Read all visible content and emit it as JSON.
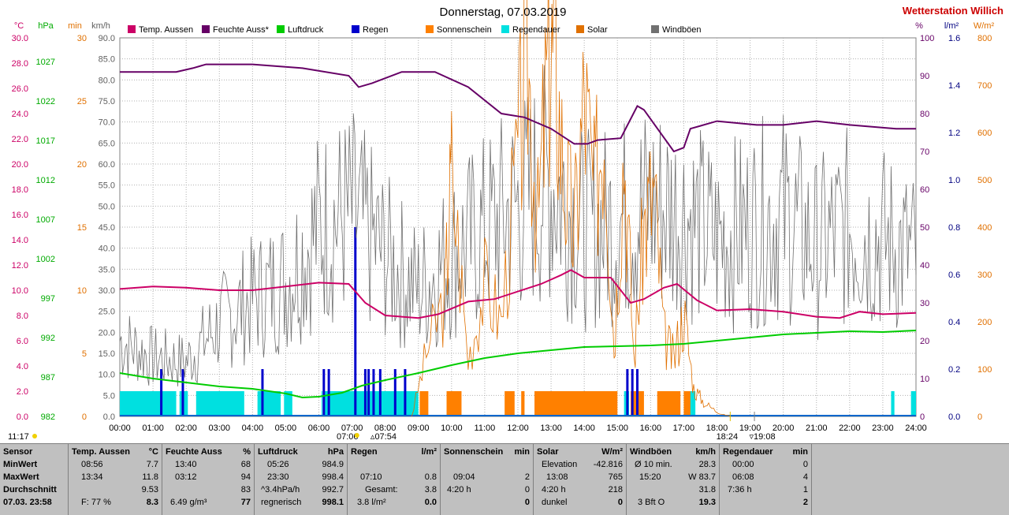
{
  "header": {
    "title": "Donnerstag, 07.03.2019",
    "brand": "Wetterstation Willich",
    "brand_color": "#cc0000"
  },
  "axes": {
    "temp": {
      "unit": "°C",
      "color": "#cc0066",
      "ticks": [
        "0.0",
        "2.0",
        "4.0",
        "6.0",
        "8.0",
        "10.0",
        "12.0",
        "14.0",
        "16.0",
        "18.0",
        "20.0",
        "22.0",
        "24.0",
        "26.0",
        "28.0",
        "30.0"
      ]
    },
    "hpa": {
      "unit": "hPa",
      "color": "#00aa00",
      "ticks": [
        "982",
        "987",
        "992",
        "997",
        "1002",
        "1007",
        "1012",
        "1017",
        "1022",
        "1027"
      ]
    },
    "min": {
      "unit": "min",
      "color": "#e07000",
      "ticks": [
        "0",
        "5",
        "10",
        "15",
        "20",
        "25",
        "30"
      ]
    },
    "kmh": {
      "unit": "km/h",
      "color": "#606060",
      "ticks": [
        "0.0",
        "5.0",
        "10.0",
        "15.0",
        "20.0",
        "25.0",
        "30.0",
        "35.0",
        "40.0",
        "45.0",
        "50.0",
        "55.0",
        "60.0",
        "65.0",
        "70.0",
        "75.0",
        "80.0",
        "85.0",
        "90.0"
      ]
    },
    "pct": {
      "unit": "%",
      "color": "#660066",
      "ticks": [
        "0",
        "10",
        "20",
        "30",
        "40",
        "50",
        "60",
        "70",
        "80",
        "90",
        "100"
      ]
    },
    "lm2": {
      "unit": "l/m²",
      "color": "#000080",
      "ticks": [
        "0.0",
        "0.2",
        "0.4",
        "0.6",
        "0.8",
        "1.0",
        "1.2",
        "1.4",
        "1.6"
      ]
    },
    "wm2": {
      "unit": "W/m²",
      "color": "#e07000",
      "ticks": [
        "0",
        "100",
        "200",
        "300",
        "400",
        "500",
        "600",
        "700",
        "800"
      ]
    }
  },
  "time_labels": [
    "00:00",
    "01:00",
    "02:00",
    "03:00",
    "04:00",
    "05:00",
    "06:00",
    "07:00",
    "08:00",
    "09:00",
    "10:00",
    "11:00",
    "12:00",
    "13:00",
    "14:00",
    "15:00",
    "16:00",
    "17:00",
    "18:00",
    "19:00",
    "20:00",
    "21:00",
    "22:00",
    "23:00",
    "24:00"
  ],
  "sun_marks": {
    "left": "11:17",
    "sunrise": "07:06",
    "civil_dawn": "07:54",
    "sunset": "18:24",
    "civil_dusk": "19:08"
  },
  "chart_data": {
    "type": "line",
    "title": "Donnerstag, 07.03.2019",
    "x_range": [
      "00:00",
      "24:00"
    ],
    "grid": true,
    "legend_position": "top",
    "series": [
      {
        "name": "Temp. Aussen",
        "unit": "°C",
        "color": "#cc0066",
        "points": [
          [
            0,
            10.1
          ],
          [
            1,
            10.3
          ],
          [
            2,
            10.2
          ],
          [
            3,
            10.0
          ],
          [
            4,
            10.0
          ],
          [
            5,
            10.3
          ],
          [
            6,
            10.6
          ],
          [
            6.9,
            10.5
          ],
          [
            7.4,
            9.0
          ],
          [
            8,
            8.0
          ],
          [
            9,
            7.8
          ],
          [
            9.6,
            8.1
          ],
          [
            10.5,
            9.1
          ],
          [
            11.3,
            9.3
          ],
          [
            12,
            9.9
          ],
          [
            12.7,
            10.5
          ],
          [
            13.3,
            11.2
          ],
          [
            13.6,
            11.6
          ],
          [
            14,
            11.0
          ],
          [
            14.8,
            11.0
          ],
          [
            15.4,
            9.0
          ],
          [
            15.8,
            9.3
          ],
          [
            16.4,
            10.2
          ],
          [
            16.8,
            10.5
          ],
          [
            17.4,
            9.2
          ],
          [
            18,
            8.4
          ],
          [
            19,
            8.5
          ],
          [
            20,
            8.3
          ],
          [
            21,
            7.9
          ],
          [
            21.7,
            7.8
          ],
          [
            22.3,
            8.3
          ],
          [
            23,
            8.1
          ],
          [
            24,
            8.2
          ]
        ]
      },
      {
        "name": "Feuchte Aussen",
        "unit": "%",
        "color": "#660066",
        "points": [
          [
            0,
            91
          ],
          [
            1.7,
            91
          ],
          [
            2.2,
            92
          ],
          [
            2.6,
            93
          ],
          [
            4,
            93
          ],
          [
            5.5,
            92
          ],
          [
            6.9,
            90
          ],
          [
            7.2,
            87
          ],
          [
            7.6,
            88
          ],
          [
            8.5,
            91
          ],
          [
            9.5,
            91
          ],
          [
            10.5,
            87
          ],
          [
            11.5,
            80
          ],
          [
            12.2,
            79
          ],
          [
            13,
            76
          ],
          [
            13.7,
            72
          ],
          [
            14.1,
            72
          ],
          [
            14.4,
            73
          ],
          [
            15.1,
            73.5
          ],
          [
            15.6,
            82
          ],
          [
            15.8,
            81
          ],
          [
            16.7,
            70
          ],
          [
            17,
            71
          ],
          [
            17.2,
            76
          ],
          [
            18,
            78
          ],
          [
            19.2,
            77
          ],
          [
            20,
            77
          ],
          [
            21,
            78
          ],
          [
            22,
            77
          ],
          [
            23.4,
            76
          ],
          [
            24,
            76
          ]
        ]
      },
      {
        "name": "Luftdruck",
        "unit": "hPa",
        "color": "#00cc00",
        "points": [
          [
            0,
            987.5
          ],
          [
            1,
            986.8
          ],
          [
            2,
            986.3
          ],
          [
            3,
            985.8
          ],
          [
            4,
            985.5
          ],
          [
            5,
            984.9
          ],
          [
            5.5,
            984.4
          ],
          [
            6,
            984.5
          ],
          [
            6.7,
            985.0
          ],
          [
            7.3,
            985.9
          ],
          [
            8,
            986.6
          ],
          [
            9,
            987.5
          ],
          [
            10,
            988.5
          ],
          [
            11,
            989.4
          ],
          [
            12,
            990.0
          ],
          [
            13,
            990.4
          ],
          [
            14,
            990.8
          ],
          [
            15,
            990.9
          ],
          [
            16,
            991.0
          ],
          [
            17,
            991.2
          ],
          [
            18,
            991.6
          ],
          [
            19,
            992.0
          ],
          [
            20,
            992.4
          ],
          [
            21,
            992.6
          ],
          [
            22,
            992.8
          ],
          [
            23,
            992.7
          ],
          [
            24,
            992.9
          ]
        ]
      },
      {
        "name": "Regen",
        "unit": "l/m²",
        "color": "#0000cc",
        "points": [
          [
            1.25,
            0.2
          ],
          [
            1.9,
            0.2
          ],
          [
            4.3,
            0.2
          ],
          [
            6.15,
            0.2
          ],
          [
            6.3,
            0.2
          ],
          [
            7.1,
            0.8
          ],
          [
            7.4,
            0.2
          ],
          [
            7.5,
            0.2
          ],
          [
            7.65,
            0.2
          ],
          [
            7.85,
            0.2
          ],
          [
            8.3,
            0.2
          ],
          [
            8.6,
            0.2
          ],
          [
            15.3,
            0.2
          ],
          [
            15.45,
            0.2
          ],
          [
            15.6,
            0.2
          ]
        ]
      },
      {
        "name": "Sonnenschein",
        "unit": "min",
        "color": "#ff8000",
        "intervals": [
          [
            9.04,
            9.3
          ],
          [
            9.85,
            10.3
          ],
          [
            11.6,
            11.9
          ],
          [
            12.1,
            12.2
          ],
          [
            12.5,
            15.0
          ],
          [
            15.4,
            15.8
          ],
          [
            16.2,
            16.9
          ],
          [
            17.0,
            17.2
          ]
        ]
      },
      {
        "name": "Regendauer",
        "unit": "min",
        "color": "#00e0e0",
        "intervals": [
          [
            0,
            1.7
          ],
          [
            1.8,
            2.05
          ],
          [
            2.3,
            3.75
          ],
          [
            4.15,
            4.85
          ],
          [
            4.95,
            5.2
          ],
          [
            6.08,
            6.1
          ],
          [
            6.15,
            9.0
          ],
          [
            15.2,
            15.35
          ],
          [
            17.1,
            17.35
          ],
          [
            23.25,
            23.35
          ],
          [
            23.85,
            24
          ]
        ]
      },
      {
        "name": "Solar",
        "unit": "W/m²",
        "color": "#e07000",
        "points": [
          [
            8.8,
            0
          ],
          [
            9.3,
            150
          ],
          [
            9.8,
            250
          ],
          [
            10.0,
            520
          ],
          [
            10.5,
            120
          ],
          [
            11.0,
            280
          ],
          [
            11.5,
            200
          ],
          [
            12.0,
            550
          ],
          [
            12.3,
            760
          ],
          [
            12.6,
            400
          ],
          [
            12.9,
            740
          ],
          [
            13.1,
            765
          ],
          [
            13.4,
            500
          ],
          [
            13.7,
            380
          ],
          [
            14.0,
            680
          ],
          [
            14.3,
            460
          ],
          [
            14.6,
            650
          ],
          [
            14.9,
            150
          ],
          [
            15.2,
            580
          ],
          [
            15.5,
            120
          ],
          [
            15.8,
            400
          ],
          [
            16.1,
            480
          ],
          [
            16.4,
            170
          ],
          [
            16.7,
            120
          ],
          [
            17.0,
            220
          ],
          [
            17.3,
            60
          ],
          [
            17.6,
            30
          ],
          [
            18.0,
            10
          ],
          [
            18.4,
            0
          ]
        ]
      },
      {
        "name": "Windböen",
        "unit": "km/h",
        "color": "#707070",
        "points": [
          [
            0,
            18
          ],
          [
            1,
            14
          ],
          [
            2,
            13
          ],
          [
            3,
            22
          ],
          [
            4,
            28
          ],
          [
            5,
            32
          ],
          [
            6,
            45
          ],
          [
            7,
            48
          ],
          [
            8,
            38
          ],
          [
            9,
            30
          ],
          [
            10,
            38
          ],
          [
            11,
            44
          ],
          [
            12,
            50
          ],
          [
            13,
            56
          ],
          [
            14,
            44
          ],
          [
            15,
            46
          ],
          [
            16,
            50
          ],
          [
            17,
            48
          ],
          [
            18,
            42
          ],
          [
            19,
            45
          ],
          [
            20,
            48
          ],
          [
            21,
            40
          ],
          [
            22,
            45
          ],
          [
            23,
            42
          ],
          [
            24,
            38
          ]
        ]
      }
    ]
  },
  "table": {
    "rows": [
      "Sensor",
      "MinWert",
      "MaxWert",
      "Durchschnitt",
      "07.03. 23:58"
    ],
    "temp": {
      "title": "Temp. Aussen",
      "unit": "°C",
      "min_t": "08:56",
      "min_v": "7.7",
      "max_t": "13:34",
      "max_v": "11.8",
      "avg": "9.53",
      "extra": "F: 77 %",
      "cur": "8.3"
    },
    "hum": {
      "title": "Feuchte Auss",
      "unit": "%",
      "min_t": "13:40",
      "min_v": "68",
      "max_t": "03:12",
      "max_v": "94",
      "avg": "83",
      "extra": "6.49 g/m³",
      "cur": "77"
    },
    "press": {
      "title": "Luftdruck",
      "unit": "hPa",
      "min_t": "05:26",
      "min_v": "984.9",
      "max_t": "23:30",
      "max_v": "998.4",
      "trend": "^3.4hPa/h",
      "avg": "992.7",
      "extra": "regnerisch",
      "cur": "998.1"
    },
    "rain": {
      "title": "Regen",
      "unit": "l/m²",
      "max_t": "07:10",
      "max_v": "0.8",
      "total_label": "Gesamt:",
      "total": "3.8",
      "extra": "3.8 l/m²",
      "cur": "0.0"
    },
    "sun": {
      "title": "Sonnenschein",
      "unit": "min",
      "max_t": "09:04",
      "max_v": "2",
      "dur": "4:20 h",
      "avg": "0",
      "cur": "0"
    },
    "solar": {
      "title": "Solar",
      "unit": "W/m²",
      "elev_label": "Elevation",
      "elev": "-42.816",
      "max_t": "13:08",
      "max_v": "765",
      "dur": "4:20 h",
      "avg": "218",
      "extra": "dunkel",
      "cur": "0"
    },
    "wind": {
      "title": "Windböen",
      "unit": "km/h",
      "ten_label": "Ø 10 min.",
      "ten": "28.3",
      "max_t": "15:20",
      "max_v": "W 83.7",
      "avg": "31.8",
      "extra": "3 Bft O",
      "cur": "19.3"
    },
    "raindur": {
      "title": "Regendauer",
      "unit": "min",
      "min_t": "00:00",
      "min_v": "0",
      "max_t": "06:08",
      "max_v": "4",
      "dur": "7:36 h",
      "avg": "1",
      "cur": "2"
    }
  }
}
